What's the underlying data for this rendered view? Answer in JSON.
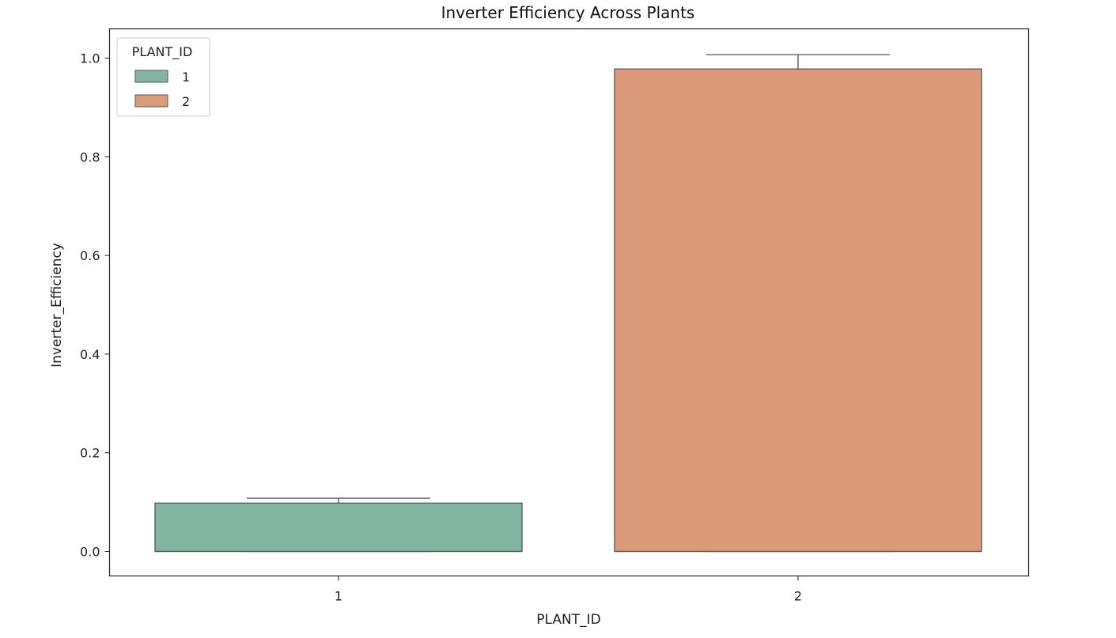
{
  "chart_data": {
    "type": "box",
    "title": "Inverter Efficiency Across Plants",
    "xlabel": "PLANT_ID",
    "ylabel": "Inverter_Efficiency",
    "categories": [
      "1",
      "2"
    ],
    "ylim": [
      -0.05,
      1.05
    ],
    "yticks": [
      0.0,
      0.2,
      0.4,
      0.6,
      0.8,
      1.0
    ],
    "ytick_labels": [
      "0.0",
      "0.2",
      "0.4",
      "0.6",
      "0.8",
      "1.0"
    ],
    "grid": false,
    "boxes": [
      {
        "category": "1",
        "whisker_low": 0.0,
        "q1": 0.0,
        "median": 0.0,
        "q3": 0.098,
        "whisker_high": 0.108,
        "color": "#82b5a2"
      },
      {
        "category": "2",
        "whisker_low": 0.0,
        "q1": 0.0,
        "median": 0.0,
        "q3": 0.978,
        "whisker_high": 1.007,
        "color": "#db9b7b"
      }
    ],
    "legend": {
      "title": "PLANT_ID",
      "placement": "top-left",
      "entries": [
        {
          "label": "1",
          "color": "#82b5a2"
        },
        {
          "label": "2",
          "color": "#db9b7b"
        }
      ]
    }
  }
}
